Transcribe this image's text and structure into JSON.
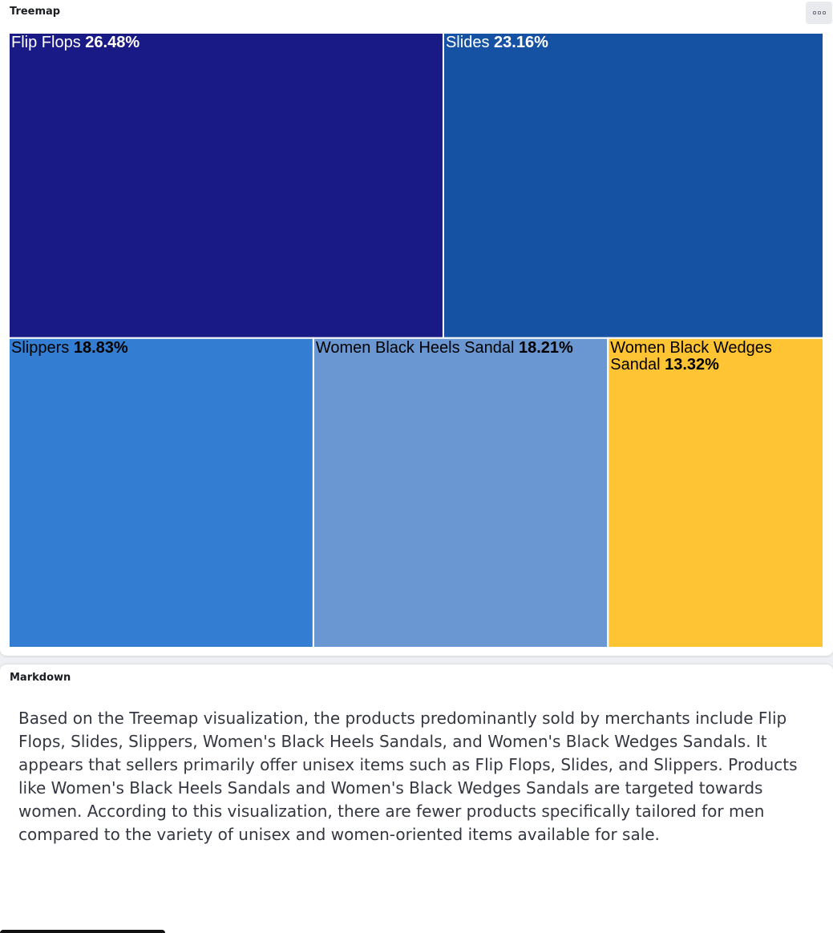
{
  "treemap_panel": {
    "title": "Treemap",
    "options_icon": "options-dots-icon"
  },
  "markdown_panel": {
    "title": "Markdown",
    "body": "Based on the Treemap visualization, the products predominantly sold by merchants include Flip Flops, Slides, Slippers, Women's Black Heels Sandals, and Women's Black Wedges Sandals. It appears that sellers primarily offer unisex items such as Flip Flops, Slides, and Slippers. Products like Women's Black Heels Sandals and Women's Black Wedges Sandals are targeted towards women. According to this visualization, there are fewer products specifically tailored for men compared to the variety of unisex and women-oriented items available for sale."
  },
  "chart_data": {
    "type": "treemap",
    "title": "",
    "items": [
      {
        "label": "Flip Flops",
        "percent": 26.48,
        "percent_label": "26.48%",
        "color": "#1a1a86",
        "text_color": "#ffffff"
      },
      {
        "label": "Slides",
        "percent": 23.16,
        "percent_label": "23.16%",
        "color": "#1652a4",
        "text_color": "#ffffff"
      },
      {
        "label": "Slippers",
        "percent": 18.83,
        "percent_label": "18.83%",
        "color": "#337dd2",
        "text_color": "#000000"
      },
      {
        "label": "Women Black Heels Sandal",
        "percent": 18.21,
        "percent_label": "18.21%",
        "color": "#6a96d1",
        "text_color": "#000000"
      },
      {
        "label": "Women Black Wedges Sandal",
        "percent": 13.32,
        "percent_label": "13.32%",
        "color": "#fec434",
        "text_color": "#000000"
      }
    ]
  }
}
